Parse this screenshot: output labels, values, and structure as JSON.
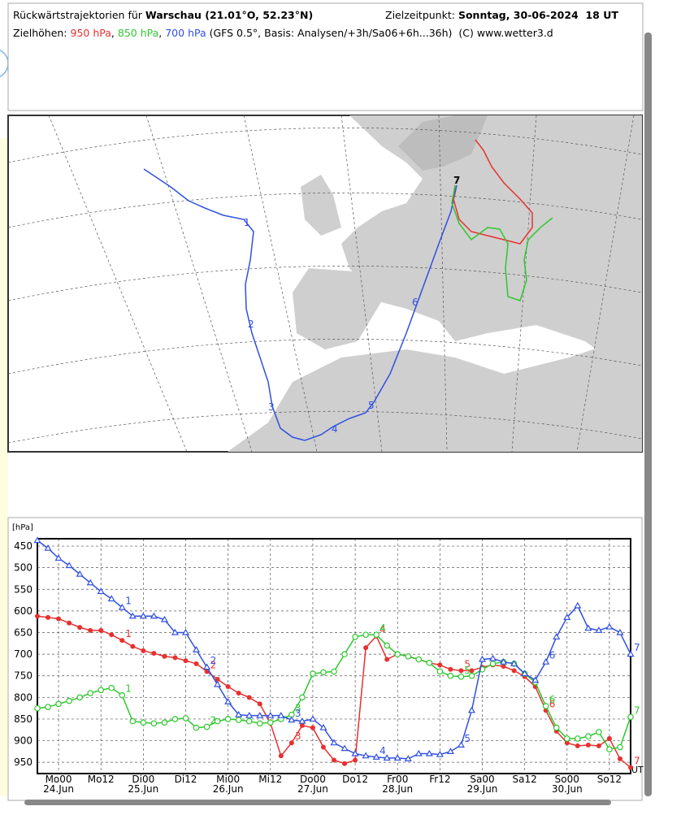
{
  "header": {
    "title_prefix": "Rückwärtstrajektorien für",
    "location": "Warschau (21.01°O, 52.23°N)",
    "target_label": "Zielzeitpunkt:",
    "target_time": "Sonntag, 30-06-2024  18 UT",
    "levels_label": "Zielhöhen:",
    "separator": ",",
    "info": "(GFS 0.5°, Basis: Analysen/+3h/Sa06+6h...36h)",
    "copyright": "(C) www.wetter3.d"
  },
  "map": {
    "day_labels": [
      "1",
      "2",
      "3",
      "4",
      "5",
      "6",
      "7"
    ]
  },
  "chart_data": {
    "type": "line",
    "ylabel": "[hPa]",
    "xlabel": "UT",
    "y_inverted": true,
    "grid": true,
    "xlim": [
      -6,
      162
    ],
    "ylim": [
      433,
      976
    ],
    "yticks": [
      450,
      500,
      550,
      600,
      650,
      700,
      750,
      800,
      850,
      900,
      950
    ],
    "xticks": [
      {
        "value": 0,
        "label": "Mo00"
      },
      {
        "value": 12,
        "label": "Mo12"
      },
      {
        "value": 24,
        "label": "Di00"
      },
      {
        "value": 36,
        "label": "Di12"
      },
      {
        "value": 48,
        "label": "Mi00"
      },
      {
        "value": 60,
        "label": "Mi12"
      },
      {
        "value": 72,
        "label": "Do00"
      },
      {
        "value": 84,
        "label": "Do12"
      },
      {
        "value": 96,
        "label": "Fr00"
      },
      {
        "value": 108,
        "label": "Fr12"
      },
      {
        "value": 120,
        "label": "Sa00"
      },
      {
        "value": 132,
        "label": "Sa12"
      },
      {
        "value": 144,
        "label": "So00"
      },
      {
        "value": 156,
        "label": "So12"
      }
    ],
    "xtick_dates": [
      {
        "value": 0,
        "label": "24.Jun"
      },
      {
        "value": 24,
        "label": "25.Jun"
      },
      {
        "value": 48,
        "label": "26.Jun"
      },
      {
        "value": 72,
        "label": "27.Jun"
      },
      {
        "value": 96,
        "label": "28.Jun"
      },
      {
        "value": 120,
        "label": "29.Jun"
      },
      {
        "value": 144,
        "label": "30.Jun"
      }
    ],
    "day_labels": [
      "1",
      "2",
      "3",
      "4",
      "5",
      "6",
      "7"
    ],
    "x": [
      -6,
      -3,
      0,
      3,
      6,
      9,
      12,
      15,
      18,
      21,
      24,
      27,
      30,
      33,
      36,
      39,
      42,
      45,
      48,
      51,
      54,
      57,
      60,
      63,
      66,
      69,
      72,
      75,
      78,
      81,
      84,
      87,
      90,
      93,
      96,
      99,
      102,
      105,
      108,
      111,
      114,
      117,
      120,
      123,
      126,
      129,
      132,
      135,
      138,
      141,
      144,
      147,
      150,
      153,
      156,
      159,
      162
    ],
    "series": [
      {
        "name": "950 hPa",
        "color": "#e83030",
        "marker": "dot",
        "values": [
          612,
          615,
          618,
          628,
          638,
          645,
          645,
          655,
          668,
          682,
          692,
          698,
          705,
          708,
          715,
          722,
          740,
          758,
          775,
          790,
          800,
          815,
          860,
          935,
          905,
          865,
          870,
          915,
          945,
          953,
          945,
          685,
          658,
          712,
          700,
          705,
          712,
          720,
          725,
          735,
          738,
          738,
          730,
          725,
          728,
          738,
          752,
          775,
          830,
          878,
          905,
          912,
          910,
          912,
          895,
          942,
          962
        ]
      },
      {
        "name": "850 hPa",
        "color": "#2ec82e",
        "marker": "circle",
        "values": [
          825,
          822,
          815,
          808,
          800,
          790,
          783,
          778,
          795,
          855,
          858,
          860,
          858,
          850,
          848,
          870,
          868,
          855,
          850,
          852,
          855,
          860,
          858,
          850,
          840,
          800,
          745,
          742,
          740,
          700,
          660,
          655,
          655,
          680,
          700,
          705,
          712,
          720,
          740,
          750,
          752,
          750,
          735,
          722,
          718,
          722,
          745,
          765,
          820,
          870,
          895,
          895,
          890,
          880,
          920,
          915,
          845
        ]
      },
      {
        "name": "700 hPa",
        "color": "#3050e0",
        "marker": "triangle",
        "values": [
          437,
          455,
          478,
          495,
          515,
          535,
          555,
          572,
          592,
          612,
          612,
          612,
          620,
          650,
          650,
          690,
          730,
          770,
          810,
          840,
          842,
          842,
          842,
          842,
          852,
          855,
          850,
          870,
          905,
          918,
          930,
          935,
          938,
          940,
          940,
          942,
          930,
          930,
          932,
          925,
          910,
          830,
          712,
          710,
          718,
          722,
          745,
          760,
          718,
          660,
          615,
          588,
          640,
          645,
          637,
          650,
          700
        ]
      }
    ]
  }
}
